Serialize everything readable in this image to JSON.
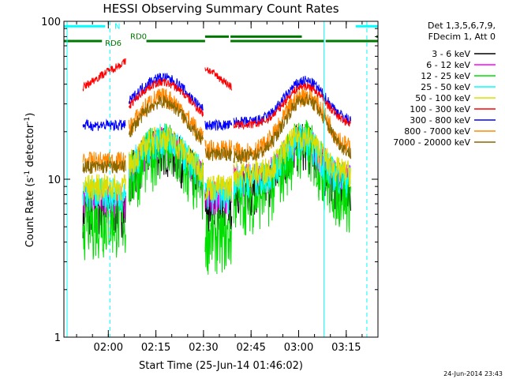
{
  "chart_data": {
    "type": "line",
    "title": "HESSI Observing Summary Count Rates",
    "xlabel": "Start Time (25-Jun-14 01:46:02)",
    "ylabel_main": "Count Rate (s",
    "ylabel_sup": "-1",
    "ylabel_rest": " detector",
    "ylabel_sup2": "-1",
    "ylabel_close": ")",
    "yscale": "log",
    "ylim": [
      1,
      100
    ],
    "xlim_minutes": [
      106,
      205
    ],
    "y_ticks": [
      "1",
      "10",
      "100"
    ],
    "x_ticks": [
      {
        "minute": 120,
        "label": "02:00"
      },
      {
        "minute": 135,
        "label": "02:15"
      },
      {
        "minute": 150,
        "label": "02:30"
      },
      {
        "minute": 165,
        "label": "02:45"
      },
      {
        "minute": 180,
        "label": "03:00"
      },
      {
        "minute": 195,
        "label": "03:15"
      }
    ],
    "legend_header": [
      "Det 1,3,5,6,7,9,",
      "FDecim 1, Att 0"
    ],
    "series": [
      {
        "name": "3 - 6 keV",
        "color": "#000000"
      },
      {
        "name": "6 - 12 keV",
        "color": "#ff00ff"
      },
      {
        "name": "12 - 25 keV",
        "color": "#00dd00"
      },
      {
        "name": "25 - 50 keV",
        "color": "#00ffff"
      },
      {
        "name": "50 - 100 keV",
        "color": "#dddd00"
      },
      {
        "name": "100 - 300 keV",
        "color": "#ff0000"
      },
      {
        "name": "300 - 800 keV",
        "color": "#0000ff"
      },
      {
        "name": "800 - 7000 keV",
        "color": "#ff8800"
      },
      {
        "name": "7000 - 20000 keV",
        "color": "#886600"
      }
    ],
    "flag_bars": [
      {
        "label": "N",
        "color": "#00ffff",
        "y": 93,
        "segments": [
          [
            106,
            119
          ],
          [
            198,
            205
          ]
        ]
      },
      {
        "label": "RD0",
        "color": "#007700",
        "y": 80,
        "segments": [
          [
            150.5,
            158
          ],
          [
            158.5,
            181
          ],
          [
            204.5,
            205
          ]
        ]
      },
      {
        "label": "RD6",
        "color": "#007700",
        "y": 75,
        "segments": [
          [
            106,
            118
          ],
          [
            132,
            150.5
          ],
          [
            158.5,
            188
          ],
          [
            188.5,
            205
          ]
        ]
      }
    ],
    "night_lines": [
      {
        "minute": 107,
        "style": "solid"
      },
      {
        "minute": 120.5,
        "style": "dashed"
      },
      {
        "minute": 188,
        "style": "solid"
      },
      {
        "minute": 201.5,
        "style": "dashed"
      }
    ]
  },
  "timestamp": "24-Jun-2014 23:43"
}
